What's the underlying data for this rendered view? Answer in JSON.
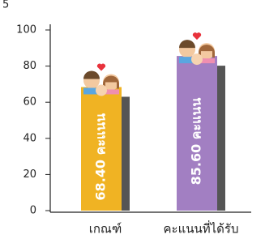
{
  "chart_data": {
    "type": "bar",
    "annotation": "5",
    "categories": [
      "เกณฑ์",
      "คะแนนที่ได้รับ"
    ],
    "values": [
      68.4,
      85.6
    ],
    "value_labels": [
      "68.40 คะแนน",
      "85.60 คะแนน"
    ],
    "colors": [
      "#f0b323",
      "#a27fc2"
    ],
    "ylim": [
      0,
      100
    ],
    "yticks": [
      0,
      20,
      40,
      60,
      80,
      100
    ]
  }
}
